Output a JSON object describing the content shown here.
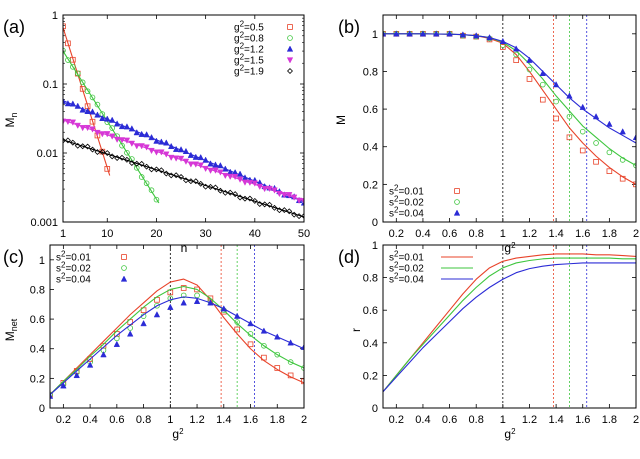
{
  "chart_data": [
    {
      "panel_label": "(a)",
      "type": "line",
      "xlabel": "n",
      "ylabel": "M",
      "ylabel_sub": "n",
      "xlim": [
        1,
        50
      ],
      "ylim": [
        0.001,
        1
      ],
      "yscale": "log",
      "xticks": [
        1,
        10,
        20,
        30,
        40,
        50
      ],
      "xtick_labels": [
        "1",
        "10",
        "20",
        "30",
        "40",
        "50"
      ],
      "yticks": [
        0.001,
        0.01,
        0.1,
        1
      ],
      "ytick_labels": [
        "0.001",
        "0.01",
        "0.1",
        "1"
      ],
      "legend_position": "top-right",
      "series": [
        {
          "name": "g²=0.5",
          "color": "#e8432a",
          "marker": "square",
          "a": 0.66,
          "b": -0.52,
          "x_points": [
            1,
            2,
            3,
            4,
            5,
            6,
            7,
            8,
            9,
            10
          ],
          "x_line": [
            1,
            10.5
          ]
        },
        {
          "name": "g²=0.8",
          "color": "#3ec63e",
          "marker": "circle",
          "a": 0.3,
          "b": -0.26,
          "x_points": [
            1,
            2,
            3,
            4,
            5,
            6,
            7,
            8,
            9,
            10,
            11,
            12,
            13,
            14,
            15,
            16,
            17,
            18,
            19,
            20
          ],
          "x_line": [
            1,
            20.5
          ]
        },
        {
          "name": "g²=1.2",
          "color": "#2b2bd6",
          "marker": "triangle-up",
          "a": 0.0575,
          "b": -0.069,
          "x_points": "1-50",
          "x_line": [
            1,
            50
          ]
        },
        {
          "name": "g²=1.5",
          "color": "#d637d6",
          "marker": "triangle-down",
          "a": 0.03,
          "b": -0.055,
          "x_points": "1-50",
          "x_line": [
            1,
            50
          ]
        },
        {
          "name": "g²=1.9",
          "color": "#000000",
          "marker": "diamond",
          "a": 0.0155,
          "b": -0.0525,
          "x_points": "1-50",
          "x_line": [
            1,
            50
          ]
        }
      ],
      "notes_formula": "M_n ≈ a·exp(b·(n−1))"
    },
    {
      "panel_label": "(b)",
      "type": "line",
      "xlabel": "g²",
      "ylabel": "M",
      "xlim": [
        0.1,
        2
      ],
      "ylim": [
        0,
        1.1
      ],
      "xticks": [
        0.2,
        0.4,
        0.6,
        0.8,
        1,
        1.2,
        1.4,
        1.6,
        1.8,
        2
      ],
      "xtick_labels": [
        "0.2",
        "0.4",
        "0.6",
        "0.8",
        "1",
        "1.2",
        "1.4",
        "1.6",
        "1.8",
        "2"
      ],
      "yticks": [
        0,
        0.2,
        0.4,
        0.6,
        0.8,
        1
      ],
      "ytick_labels": [
        "0",
        "0.2",
        "0.4",
        "0.6",
        "0.8",
        "1"
      ],
      "legend_position": "bottom-left",
      "vlines": [
        {
          "x": 1.0,
          "color": "#000000"
        },
        {
          "x": 1.38,
          "color": "#e8432a"
        },
        {
          "x": 1.5,
          "color": "#3ec63e"
        },
        {
          "x": 1.63,
          "color": "#2b2bd6"
        }
      ],
      "series": [
        {
          "name": "s²=0.01",
          "color": "#e8432a",
          "marker": "square",
          "x": [
            0.1,
            0.2,
            0.3,
            0.4,
            0.5,
            0.6,
            0.7,
            0.8,
            0.9,
            1.0,
            1.1,
            1.2,
            1.3,
            1.4,
            1.5,
            1.6,
            1.7,
            1.8,
            1.9,
            2.0
          ],
          "points": [
            1.0,
            1.0,
            1.0,
            1.0,
            1.0,
            1.0,
            0.99,
            0.985,
            0.97,
            0.93,
            0.86,
            0.76,
            0.65,
            0.55,
            0.45,
            0.38,
            0.32,
            0.27,
            0.23,
            0.2
          ],
          "curve": [
            1.0,
            1.0,
            1.0,
            1.0,
            0.999,
            0.998,
            0.995,
            0.99,
            0.975,
            0.95,
            0.89,
            0.8,
            0.7,
            0.6,
            0.5,
            0.42,
            0.35,
            0.29,
            0.24,
            0.2
          ]
        },
        {
          "name": "s²=0.02",
          "color": "#3ec63e",
          "marker": "circle",
          "x": [
            0.1,
            0.2,
            0.3,
            0.4,
            0.5,
            0.6,
            0.7,
            0.8,
            0.9,
            1.0,
            1.1,
            1.2,
            1.3,
            1.4,
            1.5,
            1.6,
            1.7,
            1.8,
            1.9,
            2.0
          ],
          "points": [
            1.0,
            1.0,
            1.0,
            1.0,
            1.0,
            1.0,
            0.99,
            0.985,
            0.975,
            0.94,
            0.89,
            0.81,
            0.73,
            0.64,
            0.56,
            0.48,
            0.42,
            0.37,
            0.33,
            0.3
          ],
          "curve": [
            1.0,
            1.0,
            1.0,
            1.0,
            0.999,
            0.998,
            0.995,
            0.99,
            0.98,
            0.955,
            0.91,
            0.84,
            0.76,
            0.67,
            0.59,
            0.51,
            0.45,
            0.39,
            0.34,
            0.3
          ]
        },
        {
          "name": "s²=0.04",
          "color": "#2b2bd6",
          "marker": "triangle-up",
          "x": [
            0.1,
            0.2,
            0.3,
            0.4,
            0.5,
            0.6,
            0.7,
            0.8,
            0.9,
            1.0,
            1.1,
            1.2,
            1.3,
            1.4,
            1.5,
            1.6,
            1.7,
            1.8,
            1.9,
            2.0
          ],
          "points": [
            1.0,
            1.0,
            1.0,
            1.0,
            1.0,
            1.0,
            0.995,
            0.99,
            0.98,
            0.96,
            0.92,
            0.86,
            0.79,
            0.73,
            0.67,
            0.61,
            0.56,
            0.52,
            0.48,
            0.45
          ],
          "curve": [
            1.0,
            1.0,
            1.0,
            1.0,
            0.999,
            0.998,
            0.996,
            0.99,
            0.98,
            0.96,
            0.925,
            0.87,
            0.8,
            0.73,
            0.66,
            0.6,
            0.55,
            0.5,
            0.46,
            0.42
          ]
        }
      ]
    },
    {
      "panel_label": "(c)",
      "type": "line",
      "xlabel": "g²",
      "ylabel": "M",
      "ylabel_sub": "net",
      "xlim": [
        0.1,
        2
      ],
      "ylim": [
        0,
        1.1
      ],
      "xticks": [
        0.2,
        0.4,
        0.6,
        0.8,
        1,
        1.2,
        1.4,
        1.6,
        1.8,
        2
      ],
      "xtick_labels": [
        "0.2",
        "0.4",
        "0.6",
        "0.8",
        "1",
        "1.2",
        "1.4",
        "1.6",
        "1.8",
        "2"
      ],
      "yticks": [
        0,
        0.2,
        0.4,
        0.6,
        0.8,
        1
      ],
      "ytick_labels": [
        "0",
        "0.2",
        "0.4",
        "0.6",
        "0.8",
        "1"
      ],
      "legend_position": "top-left",
      "vlines": [
        {
          "x": 1.0,
          "color": "#000000"
        },
        {
          "x": 1.38,
          "color": "#e8432a"
        },
        {
          "x": 1.5,
          "color": "#3ec63e"
        },
        {
          "x": 1.63,
          "color": "#2b2bd6"
        }
      ],
      "series": [
        {
          "name": "s²=0.01",
          "color": "#e8432a",
          "marker": "square",
          "x": [
            0.1,
            0.2,
            0.3,
            0.4,
            0.5,
            0.6,
            0.7,
            0.8,
            0.9,
            1.0,
            1.1,
            1.2,
            1.3,
            1.4,
            1.5,
            1.6,
            1.7,
            1.8,
            1.9,
            2.0
          ],
          "points": [
            0.09,
            0.17,
            0.25,
            0.33,
            0.42,
            0.5,
            0.58,
            0.66,
            0.73,
            0.78,
            0.81,
            0.8,
            0.74,
            0.65,
            0.53,
            0.43,
            0.34,
            0.27,
            0.22,
            0.18
          ],
          "curve": [
            0.09,
            0.18,
            0.27,
            0.36,
            0.45,
            0.54,
            0.63,
            0.71,
            0.79,
            0.85,
            0.87,
            0.83,
            0.73,
            0.61,
            0.5,
            0.4,
            0.32,
            0.26,
            0.21,
            0.17
          ]
        },
        {
          "name": "s²=0.02",
          "color": "#3ec63e",
          "marker": "circle",
          "x": [
            0.1,
            0.2,
            0.3,
            0.4,
            0.5,
            0.6,
            0.7,
            0.8,
            0.9,
            1.0,
            1.1,
            1.2,
            1.3,
            1.4,
            1.5,
            1.6,
            1.7,
            1.8,
            1.9,
            2.0
          ],
          "points": [
            0.09,
            0.16,
            0.24,
            0.31,
            0.39,
            0.47,
            0.54,
            0.62,
            0.69,
            0.74,
            0.76,
            0.76,
            0.72,
            0.66,
            0.58,
            0.5,
            0.42,
            0.36,
            0.31,
            0.27
          ],
          "curve": [
            0.09,
            0.18,
            0.26,
            0.35,
            0.43,
            0.52,
            0.6,
            0.68,
            0.75,
            0.8,
            0.82,
            0.8,
            0.74,
            0.66,
            0.57,
            0.49,
            0.42,
            0.36,
            0.31,
            0.27
          ]
        },
        {
          "name": "s²=0.04",
          "color": "#2b2bd6",
          "marker": "triangle-up",
          "x": [
            0.1,
            0.2,
            0.3,
            0.4,
            0.5,
            0.6,
            0.7,
            0.8,
            0.9,
            1.0,
            1.1,
            1.2,
            1.3,
            1.4,
            1.5,
            1.6,
            1.7,
            1.8,
            1.9,
            2.0
          ],
          "points": [
            0.08,
            0.15,
            0.22,
            0.29,
            0.36,
            0.43,
            0.5,
            0.57,
            0.63,
            0.68,
            0.71,
            0.72,
            0.71,
            0.67,
            0.62,
            0.57,
            0.52,
            0.48,
            0.44,
            0.41
          ],
          "curve": [
            0.09,
            0.17,
            0.25,
            0.33,
            0.41,
            0.49,
            0.56,
            0.63,
            0.69,
            0.73,
            0.75,
            0.74,
            0.71,
            0.67,
            0.62,
            0.57,
            0.52,
            0.48,
            0.44,
            0.4
          ]
        }
      ]
    },
    {
      "panel_label": "(d)",
      "type": "line",
      "xlabel": "g²",
      "ylabel": "r",
      "xlim": [
        0.1,
        2
      ],
      "ylim": [
        0,
        1
      ],
      "xticks": [
        0.2,
        0.4,
        0.6,
        0.8,
        1,
        1.2,
        1.4,
        1.6,
        1.8,
        2
      ],
      "xtick_labels": [
        "0.2",
        "0.4",
        "0.6",
        "0.8",
        "1",
        "1.2",
        "1.4",
        "1.6",
        "1.8",
        "2"
      ],
      "yticks": [
        0,
        0.2,
        0.4,
        0.6,
        0.8,
        1
      ],
      "ytick_labels": [
        "0",
        "0.2",
        "0.4",
        "0.6",
        "0.8",
        "1"
      ],
      "legend_position": "top-left",
      "vlines": [
        {
          "x": 1.0,
          "color": "#000000"
        },
        {
          "x": 1.38,
          "color": "#e8432a"
        },
        {
          "x": 1.5,
          "color": "#3ec63e"
        },
        {
          "x": 1.63,
          "color": "#2b2bd6"
        }
      ],
      "series": [
        {
          "name": "s²=0.01",
          "color": "#e8432a",
          "x": [
            0.1,
            0.2,
            0.3,
            0.4,
            0.5,
            0.6,
            0.7,
            0.8,
            0.9,
            1.0,
            1.1,
            1.2,
            1.3,
            1.4,
            1.5,
            1.6,
            1.7,
            1.8,
            1.9,
            2.0
          ],
          "curve": [
            0.1,
            0.2,
            0.3,
            0.4,
            0.5,
            0.6,
            0.7,
            0.79,
            0.86,
            0.9,
            0.92,
            0.93,
            0.94,
            0.945,
            0.945,
            0.945,
            0.94,
            0.94,
            0.935,
            0.93
          ]
        },
        {
          "name": "s²=0.02",
          "color": "#3ec63e",
          "x": [
            0.1,
            0.2,
            0.3,
            0.4,
            0.5,
            0.6,
            0.7,
            0.8,
            0.9,
            1.0,
            1.1,
            1.2,
            1.3,
            1.4,
            1.5,
            1.6,
            1.7,
            1.8,
            1.9,
            2.0
          ],
          "curve": [
            0.1,
            0.2,
            0.3,
            0.39,
            0.48,
            0.57,
            0.66,
            0.74,
            0.81,
            0.86,
            0.89,
            0.905,
            0.915,
            0.92,
            0.92,
            0.92,
            0.92,
            0.92,
            0.915,
            0.915
          ]
        },
        {
          "name": "s²=0.04",
          "color": "#2b2bd6",
          "x": [
            0.1,
            0.2,
            0.3,
            0.4,
            0.5,
            0.6,
            0.7,
            0.8,
            0.9,
            1.0,
            1.1,
            1.2,
            1.3,
            1.4,
            1.5,
            1.6,
            1.7,
            1.8,
            1.9,
            2.0
          ],
          "curve": [
            0.1,
            0.19,
            0.28,
            0.37,
            0.45,
            0.53,
            0.61,
            0.68,
            0.74,
            0.79,
            0.83,
            0.855,
            0.87,
            0.88,
            0.885,
            0.89,
            0.89,
            0.89,
            0.89,
            0.89
          ]
        }
      ]
    }
  ]
}
